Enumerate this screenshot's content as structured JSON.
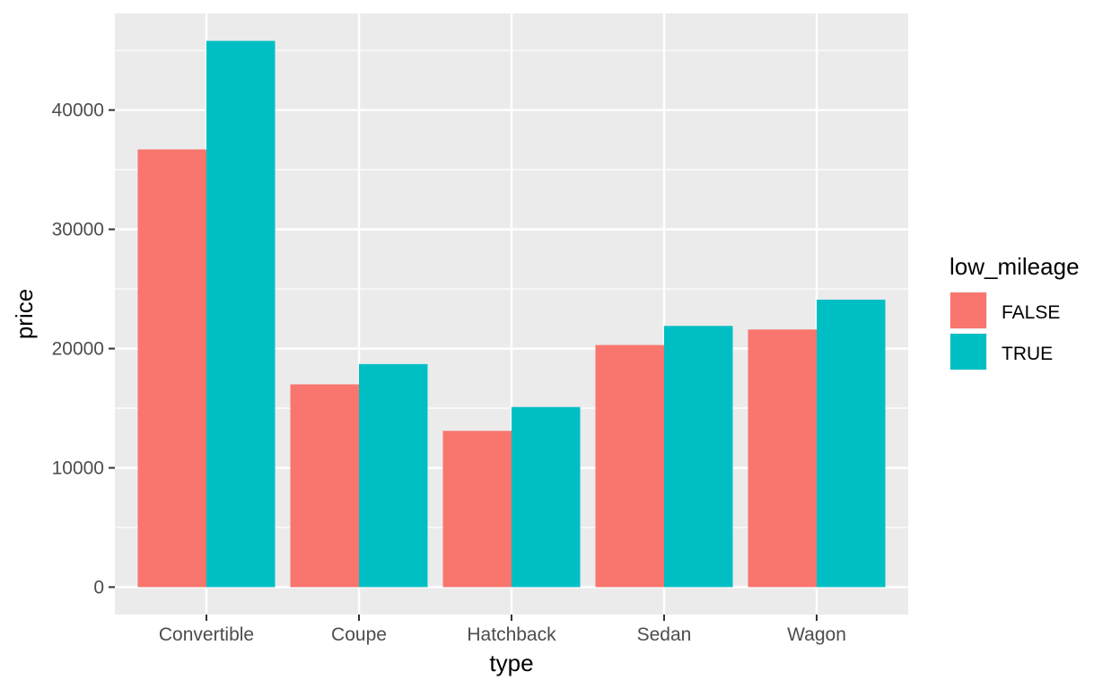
{
  "chart_data": {
    "type": "bar",
    "xlabel": "type",
    "ylabel": "price",
    "categories": [
      "Convertible",
      "Coupe",
      "Hatchback",
      "Sedan",
      "Wagon"
    ],
    "series": [
      {
        "name": "FALSE",
        "color": "#F8766D",
        "values": [
          36700,
          17000,
          13100,
          20300,
          21600
        ]
      },
      {
        "name": "TRUE",
        "color": "#00BFC4",
        "values": [
          45800,
          18700,
          15100,
          21900,
          24100
        ]
      }
    ],
    "ylim": [
      -2300,
      48100
    ],
    "yticks": [
      0,
      10000,
      20000,
      30000,
      40000
    ],
    "ytick_labels": [
      "0",
      "10000",
      "20000",
      "30000",
      "40000"
    ],
    "legend": {
      "title": "low_mileage",
      "position": "right"
    },
    "grid": true,
    "panel_background": "#EBEBEB"
  }
}
